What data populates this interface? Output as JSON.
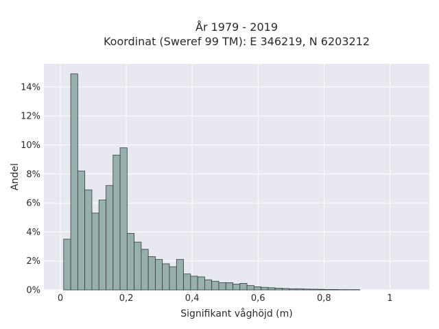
{
  "chart_data": {
    "type": "bar",
    "title_line1": "År 1979 - 2019",
    "title_line2": "Koordinat (Sweref 99 TM): E 346219, N 6203212",
    "xlabel": "Signifikant våghöjd (m)",
    "ylabel": "Andel",
    "xlim": [
      -0.05,
      1.12
    ],
    "ylim": [
      0,
      15.6
    ],
    "grid": true,
    "bin_width": 0.0214,
    "bin_start": 0.01,
    "x_ticks": [
      {
        "value": 0,
        "label": "0"
      },
      {
        "value": 0.2,
        "label": "0,2"
      },
      {
        "value": 0.4,
        "label": "0,4"
      },
      {
        "value": 0.6,
        "label": "0,6"
      },
      {
        "value": 0.8,
        "label": "0,8"
      },
      {
        "value": 1.0,
        "label": "1"
      }
    ],
    "y_ticks": [
      {
        "value": 0,
        "label": "0%"
      },
      {
        "value": 2,
        "label": "2%"
      },
      {
        "value": 4,
        "label": "4%"
      },
      {
        "value": 6,
        "label": "6%"
      },
      {
        "value": 8,
        "label": "8%"
      },
      {
        "value": 10,
        "label": "10%"
      },
      {
        "value": 12,
        "label": "12%"
      },
      {
        "value": 14,
        "label": "14%"
      }
    ],
    "values": [
      3.5,
      14.9,
      8.2,
      6.9,
      5.3,
      6.2,
      7.2,
      9.3,
      9.8,
      3.9,
      3.3,
      2.8,
      2.3,
      2.1,
      1.8,
      1.6,
      2.1,
      1.1,
      0.95,
      0.9,
      0.7,
      0.6,
      0.5,
      0.5,
      0.4,
      0.45,
      0.3,
      0.22,
      0.18,
      0.15,
      0.12,
      0.1,
      0.08,
      0.08,
      0.06,
      0.05,
      0.04,
      0.03,
      0.03,
      0.02,
      0.02,
      0.02
    ],
    "colors": {
      "bar_fill": "#97b0ae",
      "bar_stroke": "#2f3b3a",
      "plot_bg": "#e8e8f1",
      "grid": "#ffffff"
    }
  }
}
